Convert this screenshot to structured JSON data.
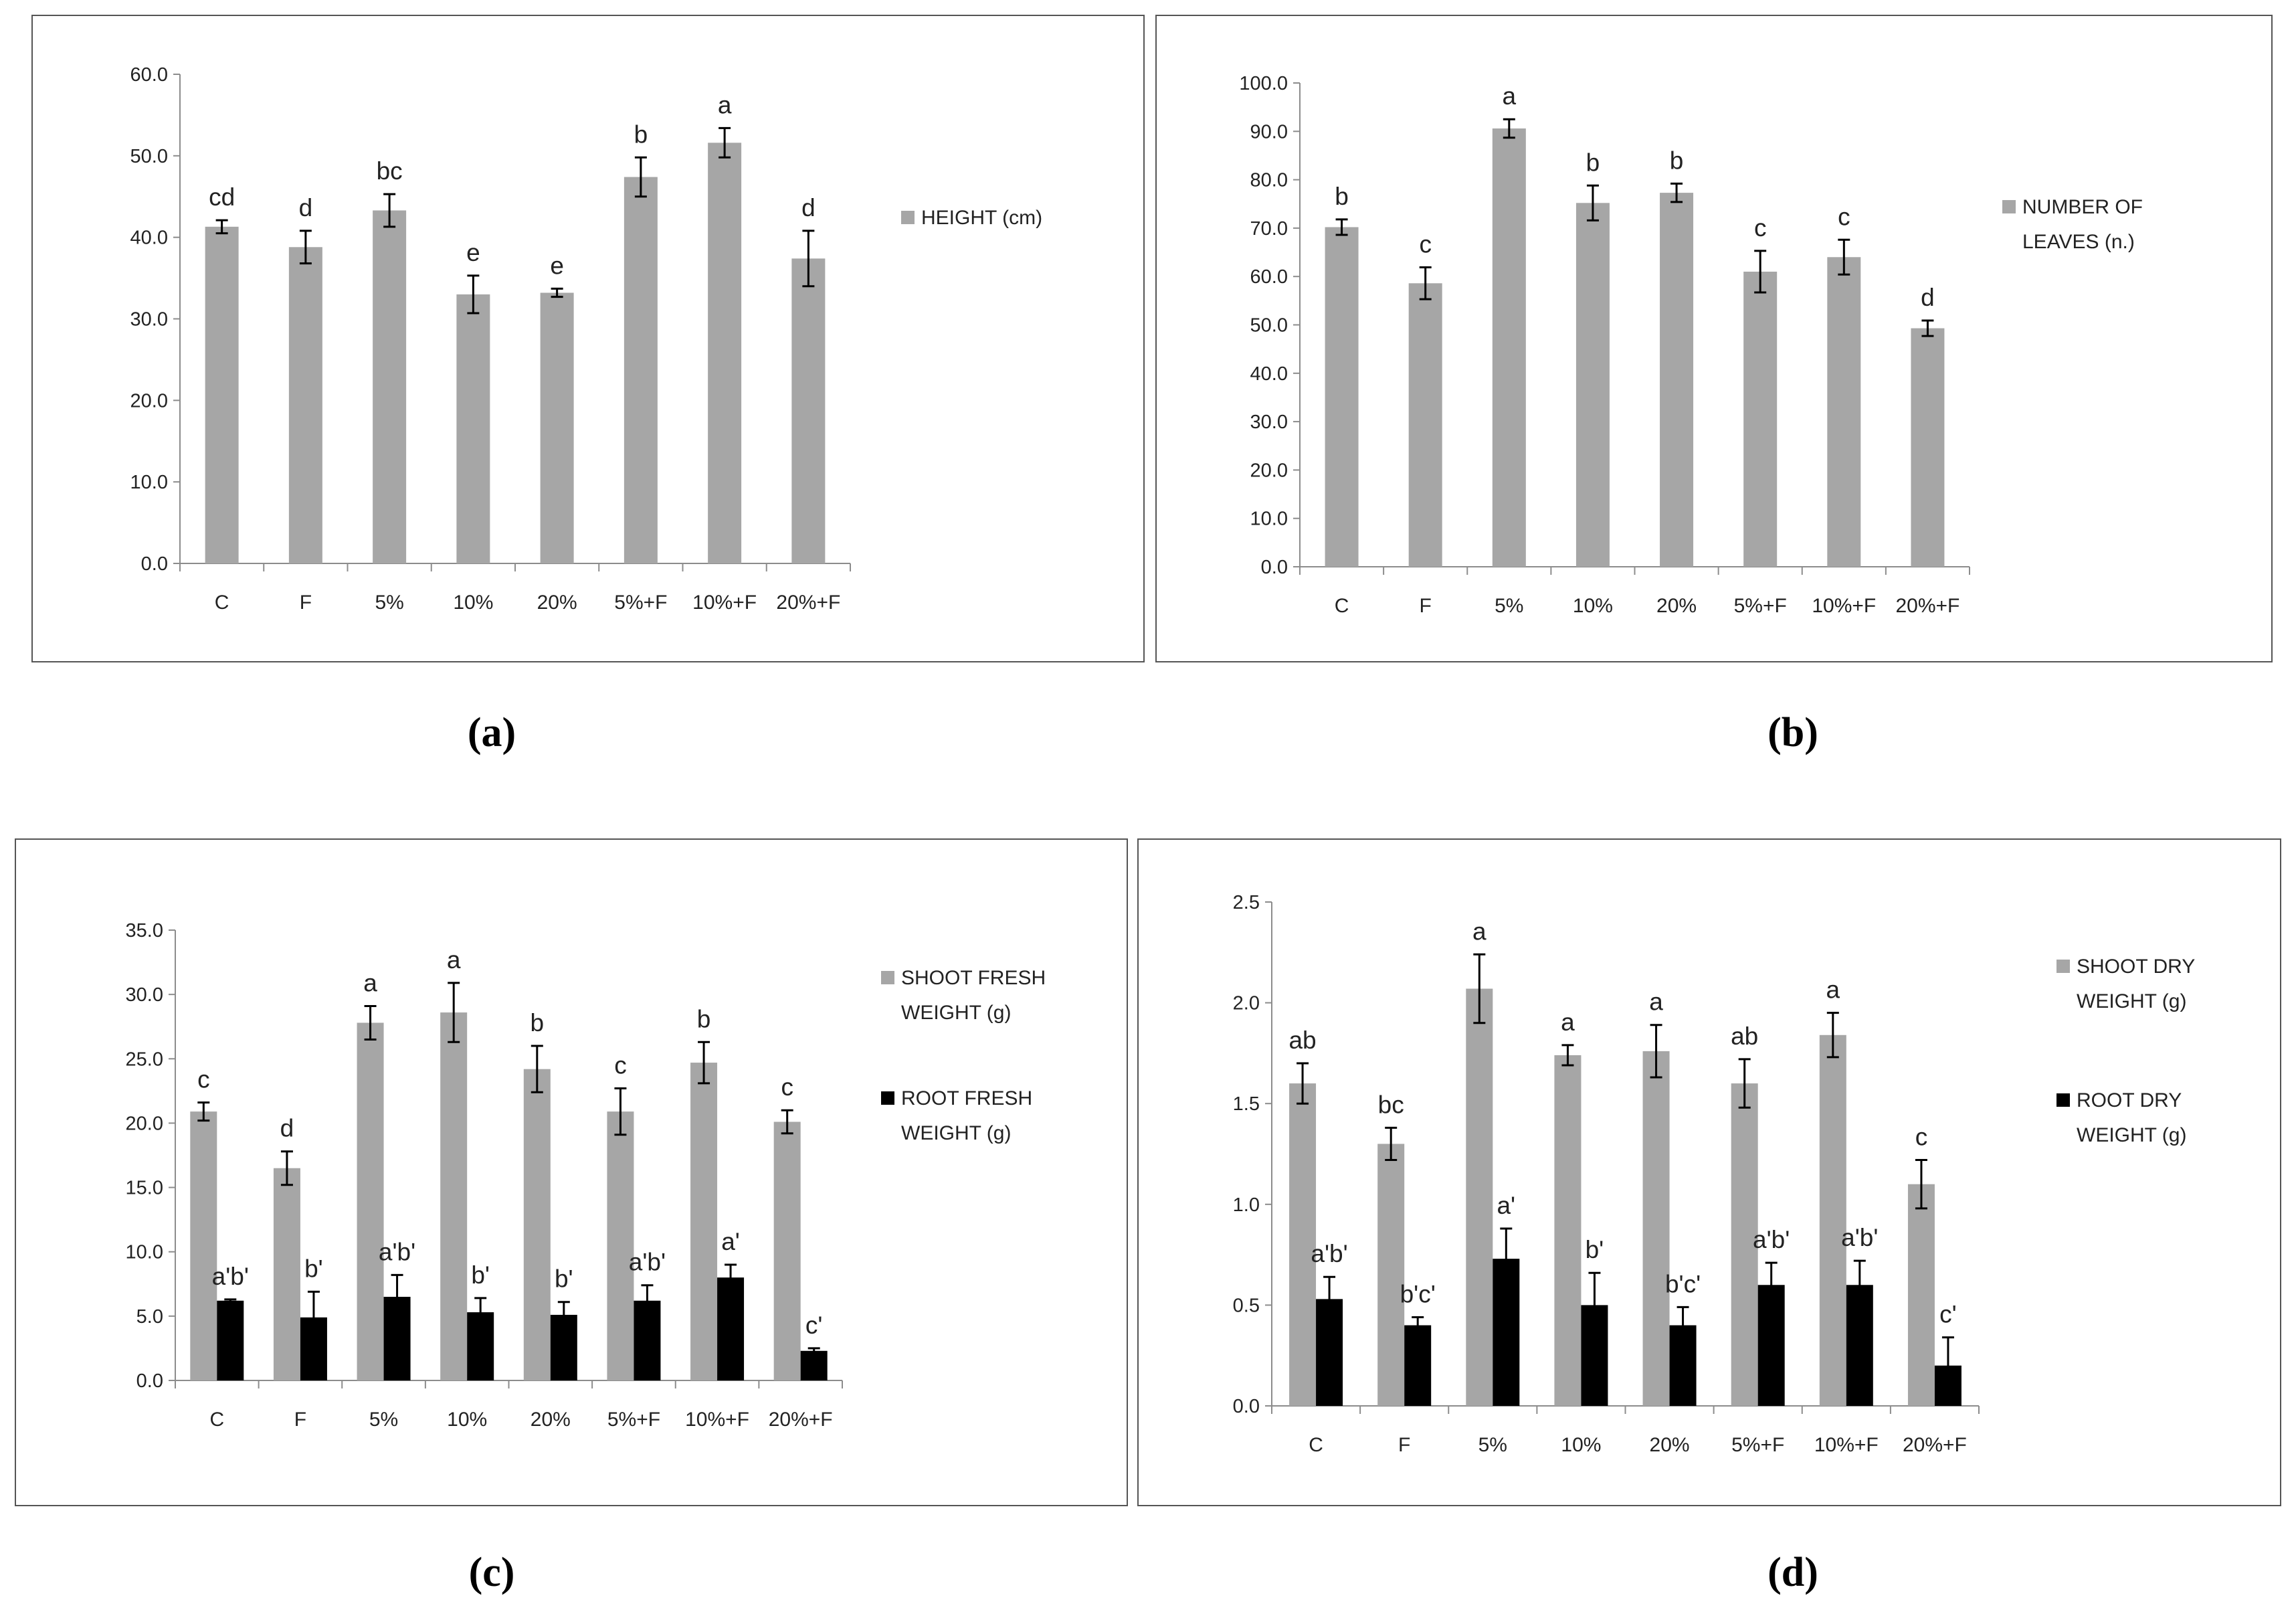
{
  "colors": {
    "gray_bar": "#a6a6a6",
    "black_bar": "#000000",
    "axis": "#8c8c8c",
    "frame": "#555555"
  },
  "chart_data": [
    {
      "id": "a",
      "type": "bar",
      "caption": "(a)",
      "categories": [
        "C",
        "F",
        "5%",
        "10%",
        "20%",
        "5%+F",
        "10%+F",
        "20%+F"
      ],
      "ylim": [
        0,
        60
      ],
      "yticks": [
        "0.0",
        "10.0",
        "20.0",
        "30.0",
        "40.0",
        "50.0",
        "60.0"
      ],
      "series": [
        {
          "name": "HEIGHT (cm)",
          "color": "#a6a6a6",
          "values": [
            41.3,
            38.8,
            43.3,
            33.0,
            33.2,
            47.4,
            51.6,
            37.4
          ],
          "errors": [
            0.8,
            2.0,
            2.0,
            2.3,
            0.5,
            2.4,
            1.8,
            3.4
          ],
          "labels": [
            "cd",
            "d",
            "bc",
            "e",
            "e",
            "b",
            "a",
            "d"
          ]
        }
      ]
    },
    {
      "id": "b",
      "type": "bar",
      "caption": "(b)",
      "categories": [
        "C",
        "F",
        "5%",
        "10%",
        "20%",
        "5%+F",
        "10%+F",
        "20%+F"
      ],
      "ylim": [
        0,
        100
      ],
      "yticks": [
        "0.0",
        "10.0",
        "20.0",
        "30.0",
        "40.0",
        "50.0",
        "60.0",
        "70.0",
        "80.0",
        "90.0",
        "100.0"
      ],
      "series": [
        {
          "name": "NUMBER OF LEAVES (n.)",
          "color": "#a6a6a6",
          "values": [
            70.2,
            58.6,
            90.6,
            75.2,
            77.3,
            61.0,
            64.0,
            49.3
          ],
          "errors": [
            1.6,
            3.3,
            1.9,
            3.6,
            1.9,
            4.3,
            3.6,
            1.6
          ],
          "labels": [
            "b",
            "c",
            "a",
            "b",
            "b",
            "c",
            "c",
            "d"
          ]
        }
      ]
    },
    {
      "id": "c",
      "type": "bar",
      "caption": "(c)",
      "categories": [
        "C",
        "F",
        "5%",
        "10%",
        "20%",
        "5%+F",
        "10%+F",
        "20%+F"
      ],
      "ylim": [
        0,
        35
      ],
      "yticks": [
        "0.0",
        "5.0",
        "10.0",
        "15.0",
        "20.0",
        "25.0",
        "30.0",
        "35.0"
      ],
      "series": [
        {
          "name": "SHOOT FRESH WEIGHT (g)",
          "color": "#a6a6a6",
          "values": [
            20.9,
            16.5,
            27.8,
            28.6,
            24.2,
            20.9,
            24.7,
            20.1
          ],
          "errors": [
            0.7,
            1.3,
            1.3,
            2.3,
            1.8,
            1.8,
            1.6,
            0.9
          ],
          "labels": [
            "c",
            "d",
            "a",
            "a",
            "b",
            "c",
            "b",
            "c"
          ]
        },
        {
          "name": "ROOT FRESH WEIGHT (g)",
          "color": "#000000",
          "values": [
            6.2,
            4.9,
            6.5,
            5.3,
            5.1,
            6.2,
            8.0,
            2.3
          ],
          "errors": [
            0.1,
            2.0,
            1.7,
            1.1,
            1.0,
            1.2,
            1.0,
            0.2
          ],
          "labels": [
            "a'b'",
            "b'",
            "a'b'",
            "b'",
            "b'",
            "a'b'",
            "a'",
            "c'"
          ]
        }
      ]
    },
    {
      "id": "d",
      "type": "bar",
      "caption": "(d)",
      "categories": [
        "C",
        "F",
        "5%",
        "10%",
        "20%",
        "5%+F",
        "10%+F",
        "20%+F"
      ],
      "ylim": [
        0,
        2.5
      ],
      "yticks": [
        "0.0",
        "0.5",
        "1.0",
        "1.5",
        "2.0",
        "2.5"
      ],
      "series": [
        {
          "name": "SHOOT DRY WEIGHT (g)",
          "color": "#a6a6a6",
          "values": [
            1.6,
            1.3,
            2.07,
            1.74,
            1.76,
            1.6,
            1.84,
            1.1
          ],
          "errors": [
            0.1,
            0.08,
            0.17,
            0.05,
            0.13,
            0.12,
            0.11,
            0.12
          ],
          "labels": [
            "ab",
            "bc",
            "a",
            "a",
            "a",
            "ab",
            "a",
            "c"
          ]
        },
        {
          "name": "ROOT DRY WEIGHT (g)",
          "color": "#000000",
          "values": [
            0.53,
            0.4,
            0.73,
            0.5,
            0.4,
            0.6,
            0.6,
            0.2
          ],
          "errors": [
            0.11,
            0.04,
            0.15,
            0.16,
            0.09,
            0.11,
            0.12,
            0.14
          ],
          "labels": [
            "a'b'",
            "b'c'",
            "a'",
            "b'",
            "b'c'",
            "a'b'",
            "a'b'",
            "c'"
          ]
        }
      ]
    }
  ]
}
